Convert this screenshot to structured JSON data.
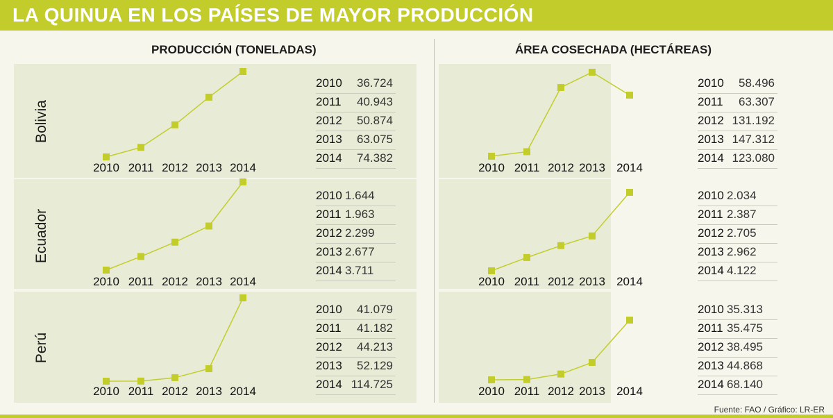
{
  "header": {
    "title": "LA QUINUA EN LOS PAÍSES DE MAYOR PRODUCCIÓN"
  },
  "columns": {
    "left": "PRODUCCIÓN (TONELADAS)",
    "right": "ÁREA COSECHADA (HECTÁREAS)"
  },
  "footer": "Fuente: FAO  / Gráfico: LR-ER",
  "colors": {
    "accent": "#c2cd2c",
    "panel": "#e8ecd6",
    "background": "#f6f6ec"
  },
  "chart_data": [
    {
      "type": "line",
      "country": "Bolivia",
      "metric": "PRODUCCIÓN (TONELADAS)",
      "x": [
        "2010",
        "2011",
        "2012",
        "2013",
        "2014"
      ],
      "values": [
        36724,
        40943,
        50874,
        63075,
        74382
      ],
      "labels": [
        "36.724",
        "40.943",
        "50.874",
        "63.075",
        "74.382"
      ]
    },
    {
      "type": "line",
      "country": "Bolivia",
      "metric": "ÁREA COSECHADA (HECTÁREAS)",
      "x": [
        "2010",
        "2011",
        "2012",
        "2013",
        "2014"
      ],
      "values": [
        58496,
        63307,
        131192,
        147312,
        123080
      ],
      "labels": [
        "58.496",
        "63.307",
        "131.192",
        "147.312",
        "123.080"
      ]
    },
    {
      "type": "line",
      "country": "Ecuador",
      "metric": "PRODUCCIÓN (TONELADAS)",
      "x": [
        "2010",
        "2011",
        "2012",
        "2013",
        "2014"
      ],
      "values": [
        1644,
        1963,
        2299,
        2677,
        3711
      ],
      "labels": [
        "1.644",
        "1.963",
        "2.299",
        "2.677",
        "3.711"
      ]
    },
    {
      "type": "line",
      "country": "Ecuador",
      "metric": "ÁREA COSECHADA (HECTÁREAS)",
      "x": [
        "2010",
        "2011",
        "2012",
        "2013",
        "2014"
      ],
      "values": [
        2034,
        2387,
        2705,
        2962,
        4122
      ],
      "labels": [
        "2.034",
        "2.387",
        "2.705",
        "2.962",
        "4.122"
      ]
    },
    {
      "type": "line",
      "country": "Perú",
      "metric": "PRODUCCIÓN (TONELADAS)",
      "x": [
        "2010",
        "2011",
        "2012",
        "2013",
        "2014"
      ],
      "values": [
        41079,
        41182,
        44213,
        52129,
        114725
      ],
      "labels": [
        "41.079",
        "41.182",
        "44.213",
        "52.129",
        "114.725"
      ]
    },
    {
      "type": "line",
      "country": "Perú",
      "metric": "ÁREA COSECHADA (HECTÁREAS)",
      "x": [
        "2010",
        "2011",
        "2012",
        "2013",
        "2014"
      ],
      "values": [
        35313,
        35475,
        38495,
        44868,
        68140
      ],
      "labels": [
        "35.313",
        "35.475",
        "38.495",
        "44.868",
        "68.140"
      ]
    }
  ]
}
